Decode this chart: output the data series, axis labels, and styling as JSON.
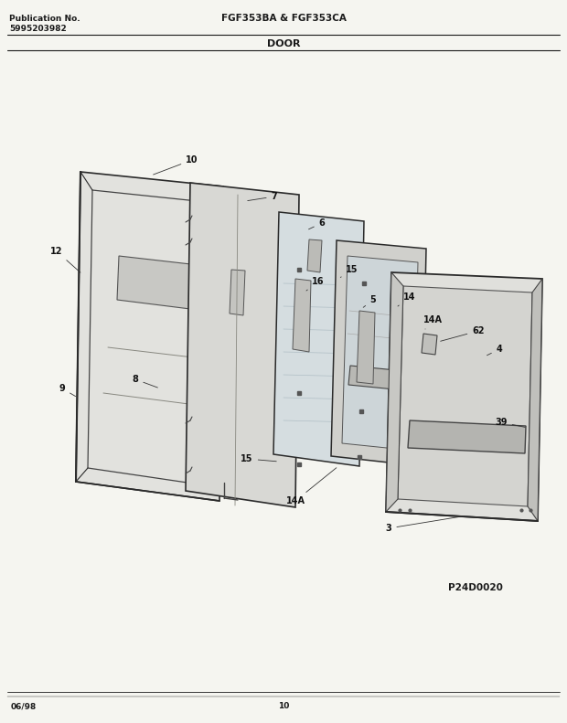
{
  "title_left_line1": "Publication No.",
  "title_left_line2": "5995203982",
  "title_center_line1": "FGF353BA & FGF353CA",
  "title_center_line2": "DOOR",
  "footer_left": "06/98",
  "footer_center": "10",
  "diagram_code": "P24D0020",
  "bg_color": "#f5f5f0",
  "line_color": "#1a1a1a",
  "panel_fill": "#e8e8e4",
  "panel_edge": "#2a2a2a",
  "fig_width": 6.2,
  "fig_height": 7.91
}
